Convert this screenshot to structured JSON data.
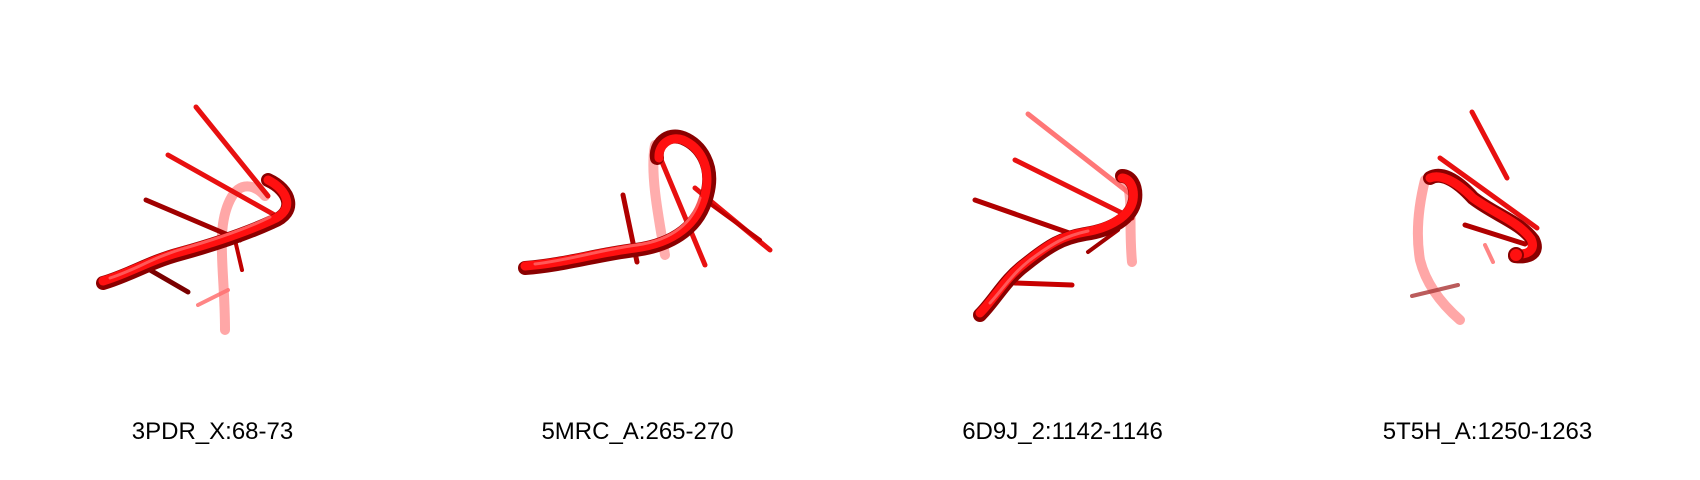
{
  "panels": [
    {
      "label": "3PDR_X:68-73",
      "color": "#ff0000"
    },
    {
      "label": "5MRC_A:265-270",
      "color": "#ff0000"
    },
    {
      "label": "6D9J_2:1142-1146",
      "color": "#ff0000"
    },
    {
      "label": "5T5H_A:1250-1263",
      "color": "#ff0000"
    }
  ]
}
